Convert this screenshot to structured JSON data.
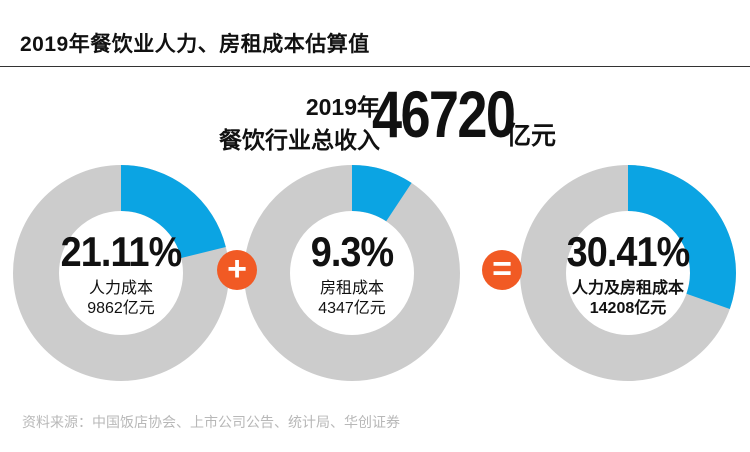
{
  "title": "2019年餐饮业人力、房租成本估算值",
  "total": {
    "year": "2019年",
    "label": "餐饮行业总收入",
    "value": "46720",
    "unit": "亿元"
  },
  "operators": {
    "plus": "+",
    "equals": "="
  },
  "source": "资料来源：中国饭店协会、上市公司公告、统计局、华创证券",
  "colors": {
    "track": "#cccccc",
    "accent": "#0ba4e3",
    "operator": "#f15a24"
  },
  "chart_data": {
    "type": "pie",
    "title": "2019年餐饮业人力、房租成本估算值",
    "series": [
      {
        "name": "人力成本",
        "percent": 21.11,
        "percent_label": "21.11%",
        "amount_label": "9862亿元",
        "amount": 9862
      },
      {
        "name": "房租成本",
        "percent": 9.3,
        "percent_label": "9.3%",
        "amount_label": "4347亿元",
        "amount": 4347
      },
      {
        "name": "人力及房租成本",
        "percent": 30.41,
        "percent_label": "30.41%",
        "amount_label": "14208亿元",
        "amount": 14208
      }
    ]
  }
}
